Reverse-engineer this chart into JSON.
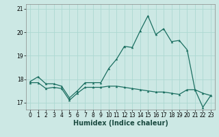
{
  "title": "",
  "xlabel": "Humidex (Indice chaleur)",
  "background_color": "#cce8e4",
  "grid_color": "#b0d8d2",
  "line_color": "#1a6e60",
  "x_values": [
    0,
    1,
    2,
    3,
    4,
    5,
    6,
    7,
    8,
    9,
    10,
    11,
    12,
    13,
    14,
    15,
    16,
    17,
    18,
    19,
    20,
    21,
    22,
    23
  ],
  "line1_y": [
    17.9,
    18.1,
    17.8,
    17.8,
    17.7,
    17.2,
    17.5,
    17.85,
    17.85,
    17.85,
    18.45,
    18.85,
    19.4,
    19.35,
    20.05,
    20.7,
    19.9,
    20.15,
    19.6,
    19.65,
    19.25,
    17.55,
    16.8,
    17.3
  ],
  "line2_y": [
    17.85,
    17.85,
    17.6,
    17.65,
    17.6,
    17.1,
    17.4,
    17.65,
    17.65,
    17.65,
    17.7,
    17.7,
    17.65,
    17.6,
    17.55,
    17.5,
    17.45,
    17.45,
    17.4,
    17.35,
    17.55,
    17.55,
    17.4,
    17.3
  ],
  "ylim": [
    16.7,
    21.2
  ],
  "yticks": [
    17,
    18,
    19,
    20,
    21
  ],
  "xticks": [
    0,
    1,
    2,
    3,
    4,
    5,
    6,
    7,
    8,
    9,
    10,
    11,
    12,
    13,
    14,
    15,
    16,
    17,
    18,
    19,
    20,
    21,
    22,
    23
  ],
  "markersize": 2.5,
  "linewidth": 0.9,
  "fontsize_xlabel": 7,
  "fontsize_tick": 5.5
}
